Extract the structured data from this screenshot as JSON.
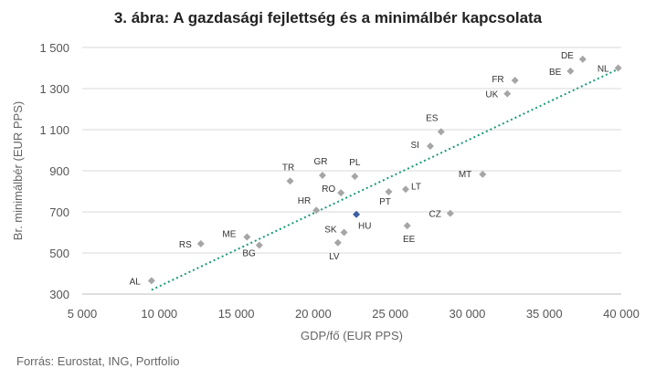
{
  "chart_data": {
    "type": "scatter",
    "title": "3. ábra: A gazdasági fejlettség és a minimálbér kapcsolata",
    "xlabel": "GDP/fő (EUR PPS)",
    "ylabel": "Br. minimálbér (EUR PPS)",
    "xlim": [
      5000,
      40000
    ],
    "ylim": [
      300,
      1500
    ],
    "xticks": [
      5000,
      10000,
      15000,
      20000,
      25000,
      30000,
      35000,
      40000
    ],
    "yticks": [
      300,
      500,
      700,
      900,
      1100,
      1300,
      1500
    ],
    "xtick_labels": [
      "5 000",
      "10 000",
      "15 000",
      "20 000",
      "25 000",
      "30 000",
      "35 000",
      "40 000"
    ],
    "ytick_labels": [
      "300",
      "500",
      "700",
      "900",
      "1 100",
      "1 300",
      "1 500"
    ],
    "grid": "horizontal",
    "point_color": "#a6a6a6",
    "highlight_color": "#3b5fa0",
    "trendline_color": "#1a9a7a",
    "points": [
      {
        "label": "AL",
        "x": 9500,
        "y": 365
      },
      {
        "label": "RS",
        "x": 12700,
        "y": 545
      },
      {
        "label": "ME",
        "x": 15700,
        "y": 578
      },
      {
        "label": "BG",
        "x": 16500,
        "y": 538
      },
      {
        "label": "TR",
        "x": 18500,
        "y": 850
      },
      {
        "label": "GR",
        "x": 20600,
        "y": 878
      },
      {
        "label": "HR",
        "x": 20200,
        "y": 708
      },
      {
        "label": "RO",
        "x": 21800,
        "y": 793
      },
      {
        "label": "PL",
        "x": 22700,
        "y": 873
      },
      {
        "label": "SK",
        "x": 22000,
        "y": 600
      },
      {
        "label": "LV",
        "x": 21600,
        "y": 550
      },
      {
        "label": "HU",
        "x": 22800,
        "y": 688,
        "highlight": true
      },
      {
        "label": "PT",
        "x": 24900,
        "y": 798
      },
      {
        "label": "LT",
        "x": 26000,
        "y": 810
      },
      {
        "label": "EE",
        "x": 26100,
        "y": 633
      },
      {
        "label": "CZ",
        "x": 28900,
        "y": 693
      },
      {
        "label": "SI",
        "x": 27600,
        "y": 1020
      },
      {
        "label": "ES",
        "x": 28300,
        "y": 1090
      },
      {
        "label": "MT",
        "x": 31000,
        "y": 883
      },
      {
        "label": "UK",
        "x": 32600,
        "y": 1275
      },
      {
        "label": "FR",
        "x": 33100,
        "y": 1340
      },
      {
        "label": "BE",
        "x": 36700,
        "y": 1385
      },
      {
        "label": "DE",
        "x": 37500,
        "y": 1443
      },
      {
        "label": "NL",
        "x": 39800,
        "y": 1400
      }
    ],
    "trendline": {
      "x": [
        9500,
        39800
      ],
      "y": [
        320,
        1395
      ]
    }
  },
  "footer": {
    "source": "Forrás: Eurostat, ING, Portfolio"
  }
}
